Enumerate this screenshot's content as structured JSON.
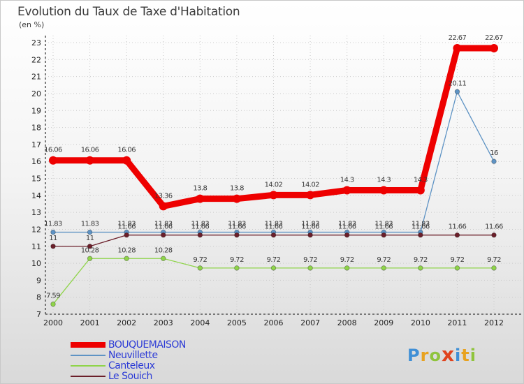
{
  "chart_data": {
    "type": "line",
    "title": "Evolution du Taux de Taxe d'Habitation",
    "ylabel": "(en %)",
    "xlabel": "",
    "x": [
      "2000",
      "2001",
      "2002",
      "2003",
      "2004",
      "2005",
      "2006",
      "2007",
      "2008",
      "2009",
      "2010",
      "2011",
      "2012"
    ],
    "ylim": [
      7,
      23
    ],
    "yticks": [
      7,
      8,
      9,
      10,
      11,
      12,
      13,
      14,
      15,
      16,
      17,
      18,
      19,
      20,
      21,
      22,
      23
    ],
    "series": [
      {
        "name": "BOUQUEMAISON",
        "color": "#ee0000",
        "values": [
          16.06,
          16.06,
          16.06,
          13.36,
          13.8,
          13.8,
          14.02,
          14.02,
          14.3,
          14.3,
          14.3,
          22.67,
          22.67
        ],
        "labels": [
          "16.06",
          "16.06",
          "16.06",
          "13.36",
          "13.8",
          "13.8",
          "14.02",
          "14.02",
          "14.3",
          "14.3",
          "14.3",
          "22.67",
          "22.67"
        ]
      },
      {
        "name": "Neuvillette",
        "color": "#5e93c4",
        "values": [
          11.83,
          11.83,
          11.83,
          11.83,
          11.83,
          11.83,
          11.83,
          11.83,
          11.83,
          11.83,
          11.83,
          20.11,
          16
        ],
        "labels": [
          "11.83",
          "11.83",
          "11.83",
          "11.83",
          "11.83",
          "11.83",
          "11.83",
          "11.83",
          "11.83",
          "11.83",
          "11.83",
          "20.11",
          "16"
        ]
      },
      {
        "name": "Canteleux",
        "color": "#8fd44a",
        "values": [
          7.59,
          10.28,
          10.28,
          10.28,
          9.72,
          9.72,
          9.72,
          9.72,
          9.72,
          9.72,
          9.72,
          9.72,
          9.72
        ],
        "labels": [
          "7.59",
          "10.28",
          "10.28",
          "10.28",
          "9.72",
          "9.72",
          "9.72",
          "9.72",
          "9.72",
          "9.72",
          "9.72",
          "9.72",
          "9.72"
        ]
      },
      {
        "name": "Le Souich",
        "color": "#6b1f2a",
        "values": [
          11,
          11,
          11.66,
          11.66,
          11.66,
          11.66,
          11.66,
          11.66,
          11.66,
          11.66,
          11.66,
          11.66,
          11.66
        ],
        "labels": [
          "11",
          "11",
          "11.66",
          "11.66",
          "11.66",
          "11.66",
          "11.66",
          "11.66",
          "11.66",
          "11.66",
          "11.66",
          "11.66",
          "11.66"
        ]
      }
    ],
    "legend_position": "bottom-left"
  },
  "logo": {
    "text": "Proxiti",
    "letters": [
      "P",
      "r",
      "o",
      "x",
      "i",
      "t",
      "i"
    ]
  }
}
